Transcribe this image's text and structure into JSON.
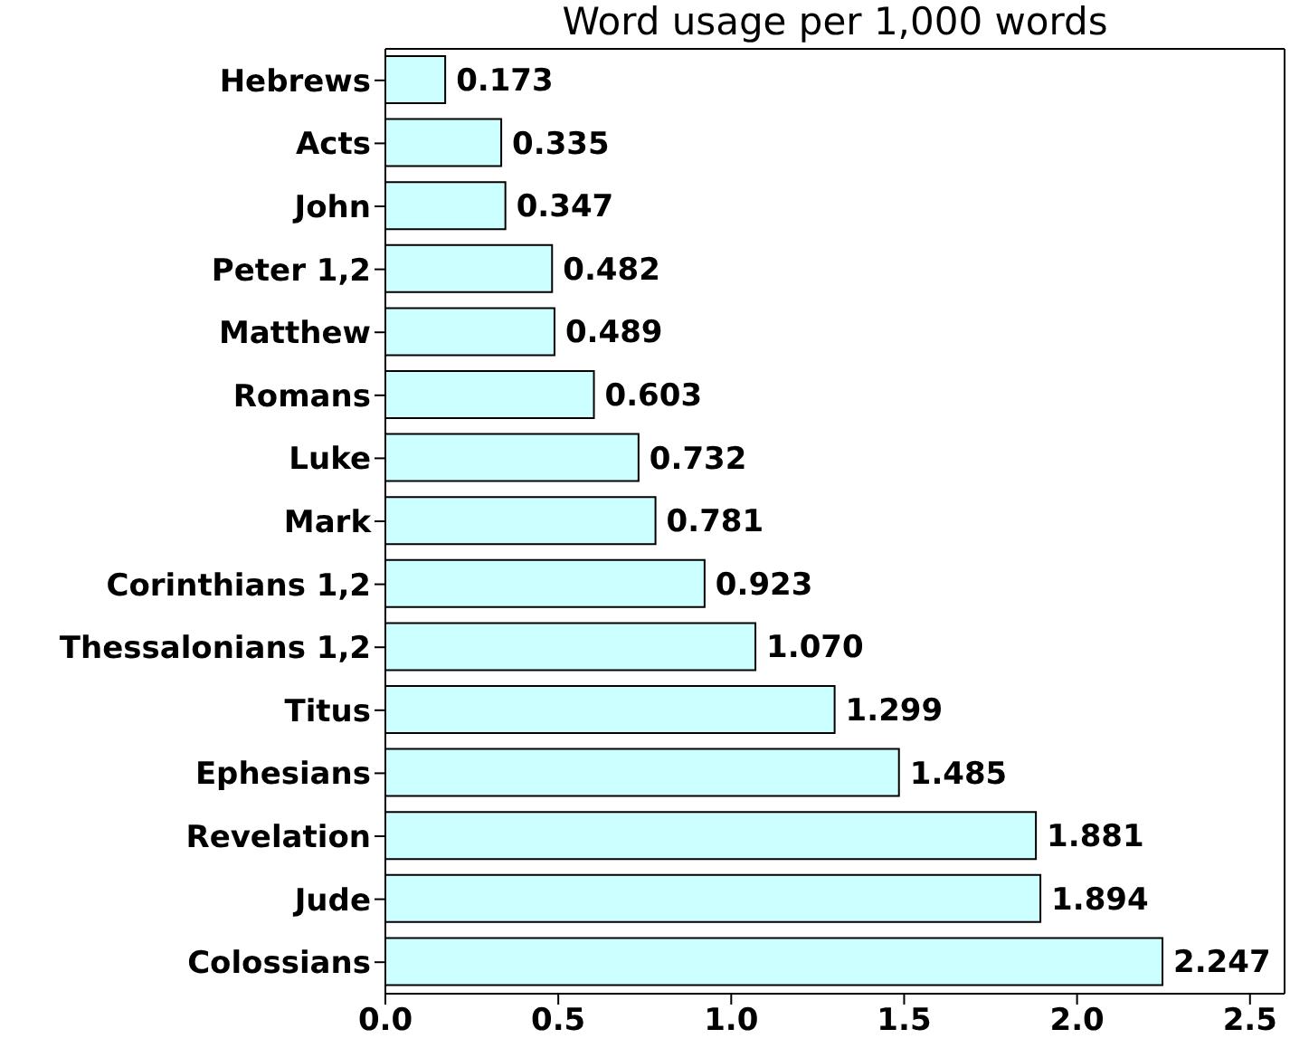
{
  "chart_data": {
    "type": "bar",
    "orientation": "horizontal",
    "title": "Word usage per 1,000 words",
    "categories": [
      "Hebrews",
      "Acts",
      "John",
      "Peter 1,2",
      "Matthew",
      "Romans",
      "Luke",
      "Mark",
      "Corinthians 1,2",
      "Thessalonians 1,2",
      "Titus",
      "Ephesians",
      "Revelation",
      "Jude",
      "Colossians"
    ],
    "values": [
      0.173,
      0.335,
      0.347,
      0.482,
      0.489,
      0.603,
      0.732,
      0.781,
      0.923,
      1.07,
      1.299,
      1.485,
      1.881,
      1.894,
      2.247
    ],
    "value_labels": [
      "0.173",
      "0.335",
      "0.347",
      "0.482",
      "0.489",
      "0.603",
      "0.732",
      "0.781",
      "0.923",
      "1.070",
      "1.299",
      "1.485",
      "1.881",
      "1.894",
      "2.247"
    ],
    "color": "#ccffff",
    "xlim": [
      0,
      2.6
    ],
    "xticks": [
      {
        "value": 0,
        "label": "0.0"
      },
      0.5,
      {
        "value": 1,
        "label": "1.0"
      },
      1.5,
      {
        "value": 2,
        "label": "2.0"
      },
      2.5
    ],
    "grid": false
  }
}
